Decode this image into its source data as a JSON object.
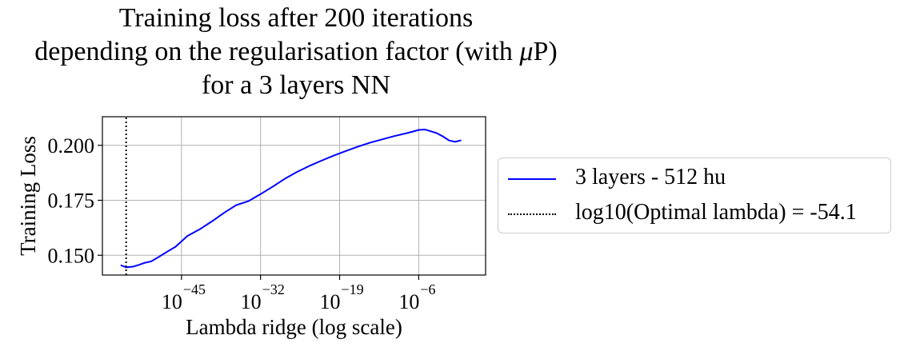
{
  "chart_data": {
    "type": "line",
    "title": {
      "line1": "Training loss after 200 iterations",
      "line2_prefix": "depending on the regularisation factor (with ",
      "line2_mu": "μ",
      "line2_suffix": "P)",
      "line3": "for a 3 layers NN"
    },
    "xlabel": "Lambda ridge (log scale)",
    "ylabel": "Training Loss",
    "x_scale": "log10",
    "xlim_log10": [
      -58,
      5
    ],
    "ylim": [
      0.141,
      0.213
    ],
    "x_ticks": [
      {
        "base": "10",
        "exp": "−45",
        "log10": -45
      },
      {
        "base": "10",
        "exp": "−32",
        "log10": -32
      },
      {
        "base": "10",
        "exp": "−19",
        "log10": -19
      },
      {
        "base": "10",
        "exp": "−6",
        "log10": -6
      }
    ],
    "y_ticks": [
      {
        "label": "0.150",
        "value": 0.15
      },
      {
        "label": "0.175",
        "value": 0.175
      },
      {
        "label": "0.200",
        "value": 0.2
      }
    ],
    "grid": true,
    "legend_position": "outside-right",
    "series": [
      {
        "name": "3 layers - 512 hu",
        "color": "#0000ff",
        "style": "solid",
        "x_log10": [
          -55,
          -54.1,
          -53,
          -52,
          -51,
          -50,
          -49,
          -48,
          -47,
          -46,
          -44,
          -42,
          -40,
          -38,
          -36,
          -34,
          -32,
          -30,
          -28,
          -26,
          -24,
          -22,
          -20,
          -18,
          -16,
          -14,
          -12,
          -10,
          -8,
          -6.5,
          -6,
          -5,
          -4,
          -3,
          -2,
          -1,
          0,
          1
        ],
        "values": [
          0.1455,
          0.1445,
          0.1448,
          0.1456,
          0.1466,
          0.1472,
          0.1488,
          0.1505,
          0.1522,
          0.1538,
          0.1588,
          0.1618,
          0.1654,
          0.1693,
          0.1728,
          0.1746,
          0.1778,
          0.1812,
          0.1848,
          0.1879,
          0.1906,
          0.193,
          0.1953,
          0.1974,
          0.1994,
          0.2012,
          0.2027,
          0.2042,
          0.2055,
          0.2066,
          0.207,
          0.2072,
          0.2064,
          0.2055,
          0.204,
          0.2022,
          0.2016,
          0.2023
        ]
      },
      {
        "name": "log10(Optimal lambda) = -54.1",
        "color": "#000000",
        "style": "dotted",
        "x_log10": [
          -54.1,
          -54.1
        ],
        "values": [
          0.141,
          0.213
        ]
      }
    ]
  }
}
